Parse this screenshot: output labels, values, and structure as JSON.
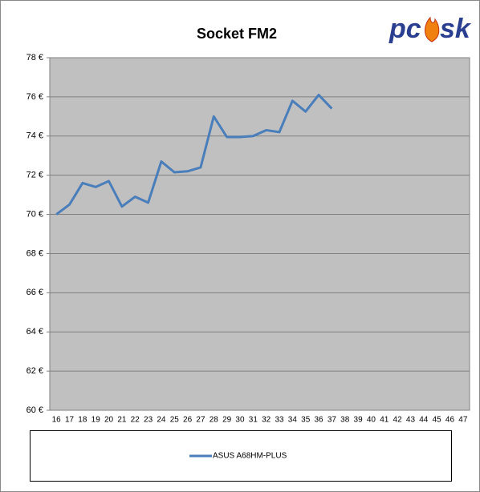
{
  "chart_data": {
    "type": "line",
    "title": "Socket FM2",
    "logo": [
      "pc",
      "sk"
    ],
    "categories": [
      "16",
      "17",
      "18",
      "19",
      "20",
      "21",
      "22",
      "23",
      "24",
      "25",
      "26",
      "27",
      "28",
      "29",
      "30",
      "31",
      "32",
      "33",
      "34",
      "35",
      "36",
      "37",
      "38",
      "39",
      "40",
      "41",
      "42",
      "43",
      "44",
      "45",
      "46",
      "47"
    ],
    "series": [
      {
        "name": "ASUS A68HM-PLUS",
        "color": "#4a7ebb",
        "values": [
          70.0,
          70.5,
          71.6,
          71.4,
          71.7,
          70.4,
          70.9,
          70.6,
          72.7,
          72.15,
          72.2,
          72.4,
          75.0,
          73.95,
          73.95,
          74.0,
          74.3,
          74.2,
          75.8,
          75.25,
          76.1,
          75.4,
          null,
          null,
          null,
          null,
          null,
          null,
          null,
          null,
          null,
          null
        ]
      }
    ],
    "ylim": [
      60,
      78
    ],
    "yticks": [
      {
        "value": 60,
        "label": "60 €"
      },
      {
        "value": 62,
        "label": "62 €"
      },
      {
        "value": 64,
        "label": "64 €"
      },
      {
        "value": 66,
        "label": "66 €"
      },
      {
        "value": 68,
        "label": "68 €"
      },
      {
        "value": 70,
        "label": "70 €"
      },
      {
        "value": 72,
        "label": "72 €"
      },
      {
        "value": 74,
        "label": "74 €"
      },
      {
        "value": 76,
        "label": "76 €"
      },
      {
        "value": 78,
        "label": "78 €"
      }
    ],
    "grid": true
  }
}
